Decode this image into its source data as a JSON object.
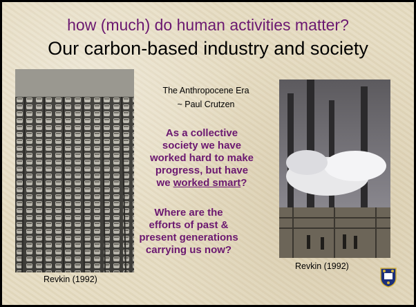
{
  "title": "how (much) do human activities matter?",
  "subtitle": "Our carbon-based industry and society",
  "era": {
    "line1": "The Anthropocene Era",
    "line2": "~ Paul Crutzen"
  },
  "paragraph1": {
    "before": "As a collective society we have worked hard to make progress, but have we ",
    "underlined": "worked smart",
    "after": "?"
  },
  "paragraph2": "Where are the efforts of past & present generations carrying us now?",
  "left_caption": "Revkin (1992)",
  "right_caption": "Revkin (1992)"
}
